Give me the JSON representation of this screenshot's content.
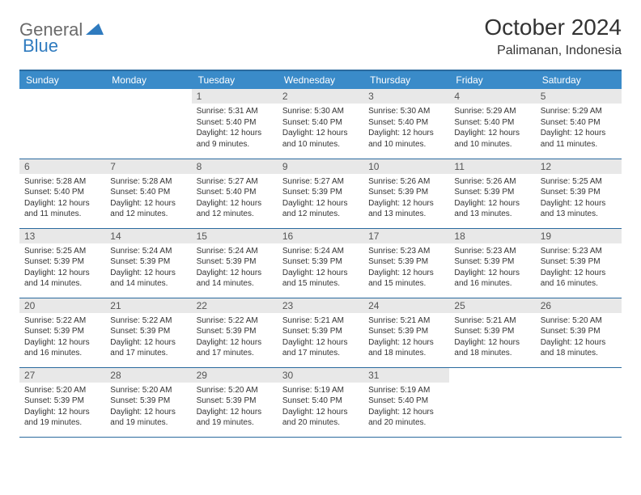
{
  "logo": {
    "text1": "General",
    "text2": "Blue"
  },
  "title": "October 2024",
  "location": "Palimanan, Indonesia",
  "weekdays": [
    "Sunday",
    "Monday",
    "Tuesday",
    "Wednesday",
    "Thursday",
    "Friday",
    "Saturday"
  ],
  "colors": {
    "header_bg": "#3a8bc9",
    "header_border": "#2a6a9e",
    "daynum_bg": "#e8e8e8",
    "logo_gray": "#6b6b6b",
    "logo_blue": "#2f7bbf"
  },
  "typography": {
    "title_fontsize": 28,
    "location_fontsize": 16,
    "weekday_fontsize": 12,
    "daynum_fontsize": 12,
    "body_fontsize": 10
  },
  "first_weekday_index": 2,
  "days": [
    {
      "n": 1,
      "sunrise": "5:31 AM",
      "sunset": "5:40 PM",
      "daylight": "12 hours and 9 minutes."
    },
    {
      "n": 2,
      "sunrise": "5:30 AM",
      "sunset": "5:40 PM",
      "daylight": "12 hours and 10 minutes."
    },
    {
      "n": 3,
      "sunrise": "5:30 AM",
      "sunset": "5:40 PM",
      "daylight": "12 hours and 10 minutes."
    },
    {
      "n": 4,
      "sunrise": "5:29 AM",
      "sunset": "5:40 PM",
      "daylight": "12 hours and 10 minutes."
    },
    {
      "n": 5,
      "sunrise": "5:29 AM",
      "sunset": "5:40 PM",
      "daylight": "12 hours and 11 minutes."
    },
    {
      "n": 6,
      "sunrise": "5:28 AM",
      "sunset": "5:40 PM",
      "daylight": "12 hours and 11 minutes."
    },
    {
      "n": 7,
      "sunrise": "5:28 AM",
      "sunset": "5:40 PM",
      "daylight": "12 hours and 12 minutes."
    },
    {
      "n": 8,
      "sunrise": "5:27 AM",
      "sunset": "5:40 PM",
      "daylight": "12 hours and 12 minutes."
    },
    {
      "n": 9,
      "sunrise": "5:27 AM",
      "sunset": "5:39 PM",
      "daylight": "12 hours and 12 minutes."
    },
    {
      "n": 10,
      "sunrise": "5:26 AM",
      "sunset": "5:39 PM",
      "daylight": "12 hours and 13 minutes."
    },
    {
      "n": 11,
      "sunrise": "5:26 AM",
      "sunset": "5:39 PM",
      "daylight": "12 hours and 13 minutes."
    },
    {
      "n": 12,
      "sunrise": "5:25 AM",
      "sunset": "5:39 PM",
      "daylight": "12 hours and 13 minutes."
    },
    {
      "n": 13,
      "sunrise": "5:25 AM",
      "sunset": "5:39 PM",
      "daylight": "12 hours and 14 minutes."
    },
    {
      "n": 14,
      "sunrise": "5:24 AM",
      "sunset": "5:39 PM",
      "daylight": "12 hours and 14 minutes."
    },
    {
      "n": 15,
      "sunrise": "5:24 AM",
      "sunset": "5:39 PM",
      "daylight": "12 hours and 14 minutes."
    },
    {
      "n": 16,
      "sunrise": "5:24 AM",
      "sunset": "5:39 PM",
      "daylight": "12 hours and 15 minutes."
    },
    {
      "n": 17,
      "sunrise": "5:23 AM",
      "sunset": "5:39 PM",
      "daylight": "12 hours and 15 minutes."
    },
    {
      "n": 18,
      "sunrise": "5:23 AM",
      "sunset": "5:39 PM",
      "daylight": "12 hours and 16 minutes."
    },
    {
      "n": 19,
      "sunrise": "5:23 AM",
      "sunset": "5:39 PM",
      "daylight": "12 hours and 16 minutes."
    },
    {
      "n": 20,
      "sunrise": "5:22 AM",
      "sunset": "5:39 PM",
      "daylight": "12 hours and 16 minutes."
    },
    {
      "n": 21,
      "sunrise": "5:22 AM",
      "sunset": "5:39 PM",
      "daylight": "12 hours and 17 minutes."
    },
    {
      "n": 22,
      "sunrise": "5:22 AM",
      "sunset": "5:39 PM",
      "daylight": "12 hours and 17 minutes."
    },
    {
      "n": 23,
      "sunrise": "5:21 AM",
      "sunset": "5:39 PM",
      "daylight": "12 hours and 17 minutes."
    },
    {
      "n": 24,
      "sunrise": "5:21 AM",
      "sunset": "5:39 PM",
      "daylight": "12 hours and 18 minutes."
    },
    {
      "n": 25,
      "sunrise": "5:21 AM",
      "sunset": "5:39 PM",
      "daylight": "12 hours and 18 minutes."
    },
    {
      "n": 26,
      "sunrise": "5:20 AM",
      "sunset": "5:39 PM",
      "daylight": "12 hours and 18 minutes."
    },
    {
      "n": 27,
      "sunrise": "5:20 AM",
      "sunset": "5:39 PM",
      "daylight": "12 hours and 19 minutes."
    },
    {
      "n": 28,
      "sunrise": "5:20 AM",
      "sunset": "5:39 PM",
      "daylight": "12 hours and 19 minutes."
    },
    {
      "n": 29,
      "sunrise": "5:20 AM",
      "sunset": "5:39 PM",
      "daylight": "12 hours and 19 minutes."
    },
    {
      "n": 30,
      "sunrise": "5:19 AM",
      "sunset": "5:40 PM",
      "daylight": "12 hours and 20 minutes."
    },
    {
      "n": 31,
      "sunrise": "5:19 AM",
      "sunset": "5:40 PM",
      "daylight": "12 hours and 20 minutes."
    }
  ],
  "labels": {
    "sunrise": "Sunrise:",
    "sunset": "Sunset:",
    "daylight": "Daylight:"
  }
}
